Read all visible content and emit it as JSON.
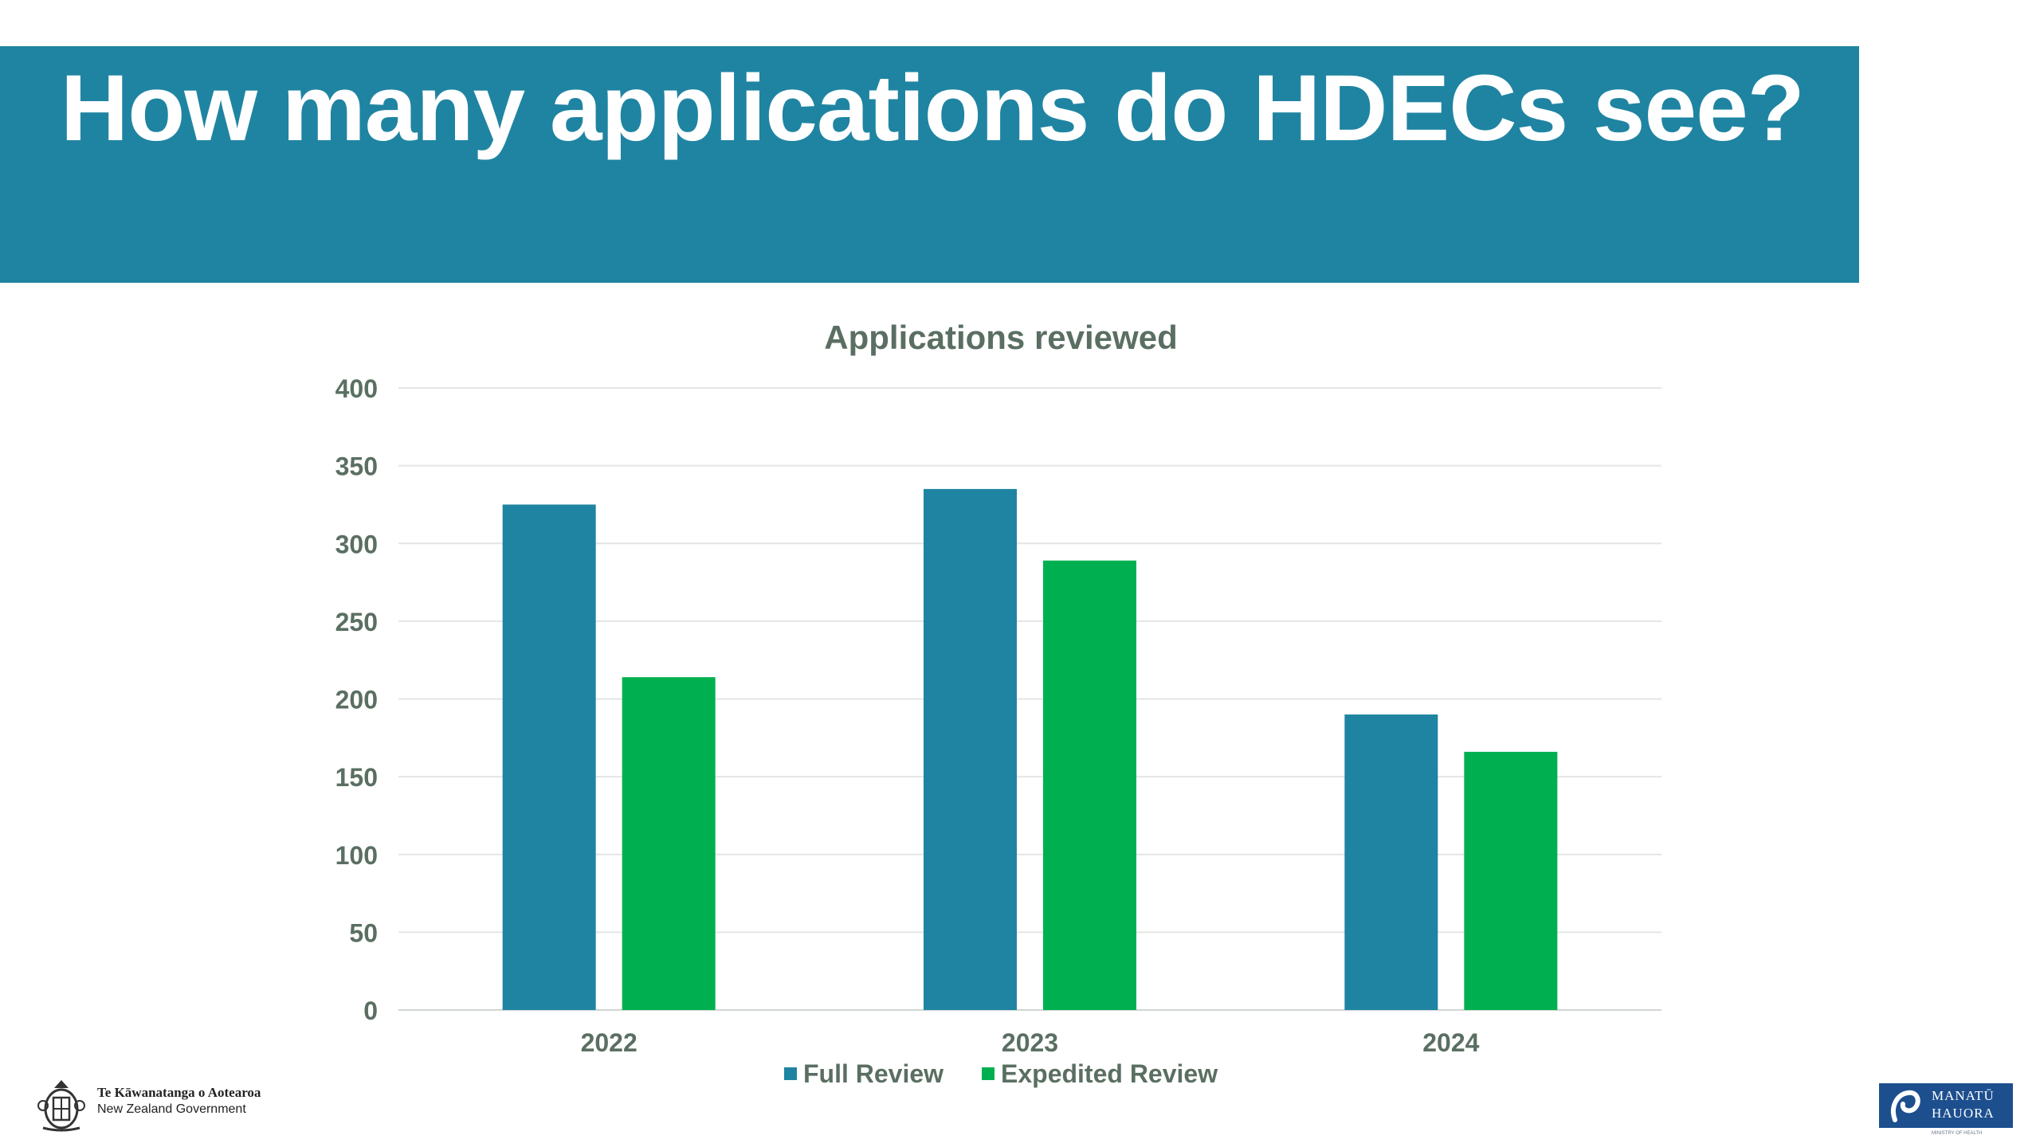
{
  "slide": {
    "title": "How many applications do HDECs see?"
  },
  "chart_data": {
    "type": "bar",
    "title": "Applications reviewed",
    "xlabel": "",
    "ylabel": "",
    "categories": [
      "2022",
      "2023",
      "2024"
    ],
    "series": [
      {
        "name": "Full Review",
        "color": "#1f84a2",
        "values": [
          325,
          335,
          190
        ]
      },
      {
        "name": "Expedited Review",
        "color": "#00b050",
        "values": [
          214,
          289,
          166
        ]
      }
    ],
    "ylim": [
      0,
      400
    ],
    "yticks": [
      "0",
      "50",
      "100",
      "150",
      "200",
      "250",
      "300",
      "350",
      "400"
    ],
    "grid": true,
    "legend_position": "bottom"
  },
  "footer": {
    "gov_logo": {
      "line1": "Te Kāwanatanga o Aotearoa",
      "line2": "New Zealand Government",
      "icon": "coat-of-arms-icon"
    },
    "ministry_logo": {
      "line1": "MANATŪ",
      "line2": "HAUORA",
      "subtitle": "MINISTRY OF HEALTH",
      "icon": "koru-icon"
    }
  }
}
